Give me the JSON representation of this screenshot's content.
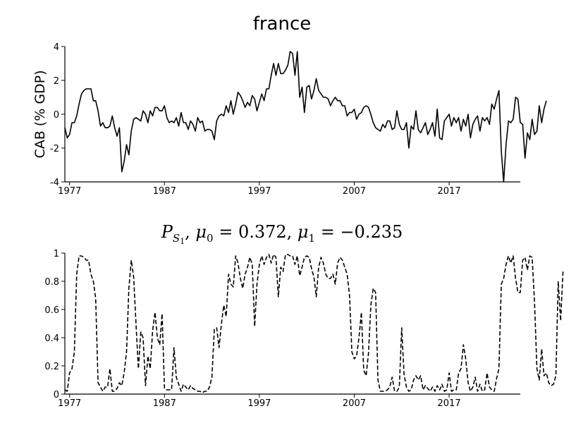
{
  "chart_data": [
    {
      "type": "line",
      "title": "france",
      "xlabel": "",
      "ylabel": "CAB (% GDP)",
      "xlim": [
        1976.5,
        2024.5
      ],
      "ylim": [
        -4,
        4
      ],
      "xticks": [
        1977,
        1987,
        1997,
        2007,
        2017
      ],
      "yticks": [
        -4,
        -2,
        0,
        2,
        4
      ],
      "x_start": 1976.5,
      "x_step": 0.25,
      "style": "solid",
      "color": "#000000",
      "values": [
        -0.8,
        -1.4,
        -1.2,
        -0.5,
        -0.5,
        -0.1,
        0.6,
        1.2,
        1.4,
        1.5,
        1.5,
        1.5,
        0.8,
        0.8,
        0.2,
        -0.7,
        -0.5,
        -0.8,
        -0.8,
        -0.7,
        -0.1,
        -0.8,
        -1.3,
        -0.8,
        -3.4,
        -2.8,
        -1.8,
        -2.4,
        -1,
        -0.3,
        -0.2,
        -0.3,
        -0.4,
        0.2,
        0,
        -0.5,
        0.2,
        -0.1,
        0.4,
        0.4,
        0.2,
        0.2,
        0.5,
        -0.2,
        -0.5,
        -0.4,
        -0.5,
        -0.2,
        -0.7,
        0.1,
        -0.5,
        -0.5,
        -0.9,
        -0.4,
        -0.6,
        -1,
        -0.2,
        -0.5,
        -0.4,
        -1,
        -0.9,
        -0.9,
        -1,
        -1.5,
        -0.4,
        -0.1,
        0,
        -0.1,
        0.5,
        0.1,
        0.8,
        0,
        0.6,
        1.3,
        1.1,
        0.8,
        0.4,
        0.7,
        0.5,
        1.1,
        0.9,
        0.2,
        0.7,
        1.2,
        0.8,
        1.5,
        1.5,
        2.3,
        3,
        2.3,
        3,
        2.4,
        2.4,
        2.6,
        2.9,
        3.7,
        3.6,
        2.3,
        3.7,
        1,
        1.6,
        0.1,
        1.6,
        1.7,
        0.9,
        1.4,
        2.1,
        1.4,
        1.2,
        1,
        1,
        0.9,
        0.5,
        0.8,
        1,
        0.8,
        0.8,
        0.5,
        0.5,
        -0.1,
        0.1,
        0.1,
        0.3,
        -0.3,
        0,
        0.1,
        0.4,
        0.5,
        0.4,
        0,
        -0.5,
        -0.8,
        -0.9,
        -1,
        -0.6,
        -0.8,
        -0.4,
        -0.4,
        -0.9,
        -0.8,
        0.2,
        -0.6,
        -0.9,
        -0.9,
        -0.5,
        -2,
        -0.7,
        -0.9,
        0.2,
        -0.9,
        -1.1,
        -0.8,
        -0.5,
        -1.2,
        -0.9,
        -0.5,
        -1.3,
        0.3,
        -1.4,
        -1.5,
        -0.4,
        -0.2,
        0,
        -0.7,
        -0.2,
        -0.5,
        -0.2,
        -1,
        -0.3,
        -0.7,
        0,
        -1.4,
        -0.6,
        -0.3,
        -0.1,
        -1,
        -0.2,
        -0.4,
        -0.2,
        -0.6,
        0.6,
        0.3,
        0.9,
        1.4,
        -2.2,
        -4,
        -1.8,
        -0.4,
        -0.5,
        -0.3,
        1,
        0.9,
        -0.5,
        -0.6,
        -2.6,
        -1.1,
        -1.5,
        -0.3,
        -1.2,
        -1,
        0.5,
        -0.5,
        0.3,
        0.8
      ]
    },
    {
      "type": "line",
      "title": "P_{S_1}, μ0 = 0.372, μ1 = −0.235",
      "xlabel": "",
      "ylabel": "",
      "xlim": [
        1976.5,
        2024.5
      ],
      "ylim": [
        0,
        1
      ],
      "xticks": [
        1977,
        1987,
        1997,
        2007,
        2017
      ],
      "yticks": [
        0,
        0.2,
        0.4,
        0.6,
        0.8,
        1
      ],
      "x_start": 1976.5,
      "x_step": 0.25,
      "style": "dashed",
      "color": "#000000",
      "values": [
        0.03,
        0.02,
        0.15,
        0.18,
        0.3,
        0.85,
        0.98,
        0.98,
        0.97,
        0.95,
        0.95,
        0.85,
        0.8,
        0.68,
        0.08,
        0.05,
        0.02,
        0.05,
        0.05,
        0.18,
        0.02,
        0.02,
        0.04,
        0.08,
        0.06,
        0.15,
        0.3,
        0.75,
        0.95,
        0.83,
        0.5,
        0.18,
        0.44,
        0.4,
        0.06,
        0.27,
        0.18,
        0.45,
        0.58,
        0.4,
        0.35,
        0.57,
        0.04,
        0.03,
        0.03,
        0.03,
        0.33,
        0.12,
        0.07,
        0.02,
        0.07,
        0.05,
        0.03,
        0.06,
        0.04,
        0.03,
        0.02,
        0.02,
        0.01,
        0.02,
        0.02,
        0.05,
        0.12,
        0.46,
        0.47,
        0.33,
        0.5,
        0.63,
        0.55,
        0.85,
        0.78,
        0.76,
        0.98,
        0.93,
        0.82,
        0.75,
        0.85,
        0.9,
        0.97,
        0.92,
        0.48,
        0.78,
        0.92,
        0.98,
        0.92,
        0.97,
        0.99,
        0.93,
        0.99,
        0.97,
        0.69,
        0.9,
        0.87,
        0.99,
        0.99,
        0.98,
        0.98,
        0.92,
        0.98,
        0.84,
        0.9,
        0.97,
        0.98,
        0.97,
        0.89,
        0.83,
        0.69,
        0.9,
        0.97,
        0.93,
        0.85,
        0.82,
        0.82,
        0.85,
        0.78,
        0.93,
        0.97,
        0.95,
        0.9,
        0.85,
        0.7,
        0.3,
        0.25,
        0.27,
        0.4,
        0.58,
        0.17,
        0.13,
        0.29,
        0.63,
        0.75,
        0.72,
        0.1,
        0.02,
        0.02,
        0.02,
        0.03,
        0.05,
        0.12,
        0.02,
        0.02,
        0.05,
        0.47,
        0.14,
        0.05,
        0.02,
        0.03,
        0.1,
        0.13,
        0.1,
        0.13,
        0.03,
        0.06,
        0.04,
        0.02,
        0.05,
        0.02,
        0.06,
        0.03,
        0.07,
        0.02,
        0.03,
        0.15,
        0.02,
        0.03,
        0.03,
        0.15,
        0.18,
        0.35,
        0.25,
        0.08,
        0.02,
        0.05,
        0.12,
        0.02,
        0.07,
        0.02,
        0.03,
        0.15,
        0.05,
        0.03,
        0.02,
        0.11,
        0.18,
        0.78,
        0.82,
        0.92,
        0.98,
        0.93,
        0.98,
        0.82,
        0.72,
        0.72,
        0.95,
        0.97,
        0.88,
        0.98,
        0.97,
        0.65,
        0.18,
        0.1,
        0.32,
        0.13,
        0.15,
        0.08,
        0.06,
        0.07,
        0.13,
        0.8,
        0.52,
        0.87,
        0.86
      ]
    }
  ]
}
